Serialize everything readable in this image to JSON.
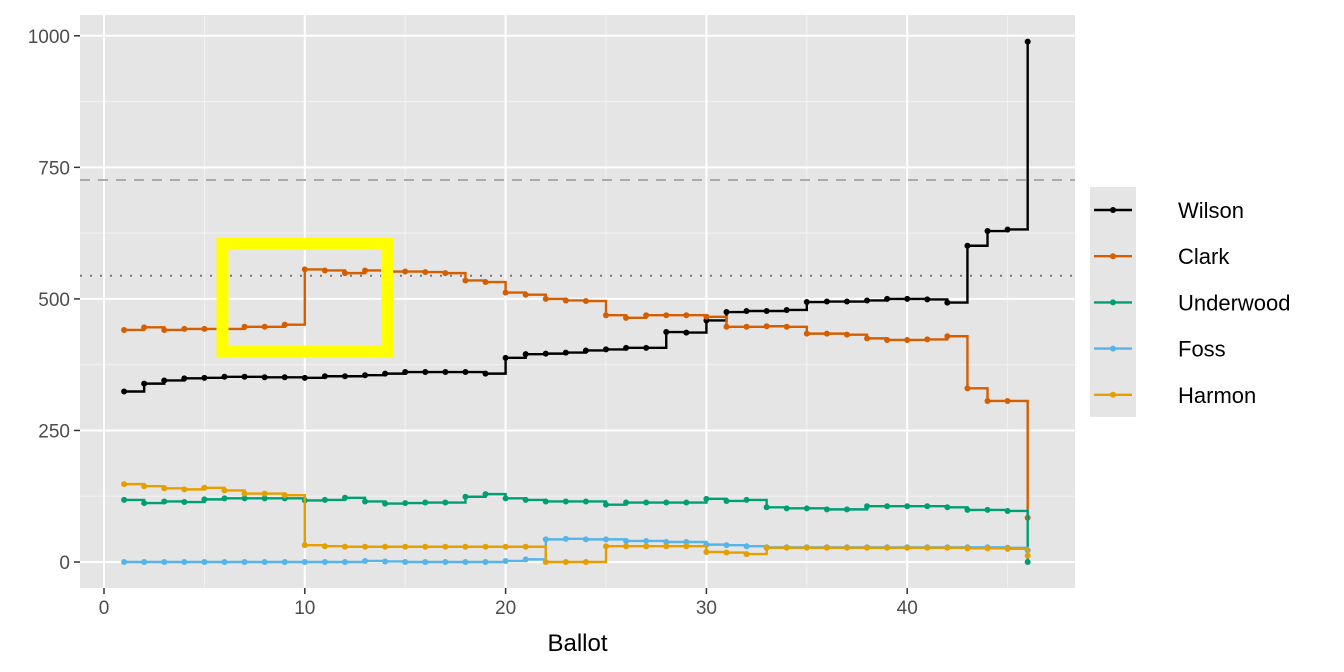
{
  "chart_data": {
    "type": "line",
    "step": "hv",
    "title": "",
    "xlabel": "Ballot",
    "ylabel": "",
    "xlim": [
      -1.2,
      48.5
    ],
    "ylim": [
      -50,
      1050
    ],
    "xticks": [
      0,
      10,
      20,
      30,
      40
    ],
    "yticks": [
      0,
      250,
      500,
      750,
      1000
    ],
    "grid": true,
    "legend_position": "right",
    "x": [
      1,
      2,
      3,
      4,
      5,
      6,
      7,
      8,
      9,
      10,
      11,
      12,
      13,
      14,
      15,
      16,
      17,
      18,
      19,
      20,
      21,
      22,
      23,
      24,
      25,
      26,
      27,
      28,
      29,
      30,
      31,
      32,
      33,
      34,
      35,
      36,
      37,
      38,
      39,
      40,
      41,
      42,
      43,
      44,
      45,
      46
    ],
    "series": [
      {
        "name": "Wilson",
        "color": "#000000",
        "values": [
          324,
          339,
          345,
          349,
          350,
          352,
          352,
          351,
          351,
          350,
          353,
          353,
          355,
          358,
          361,
          361,
          361,
          361,
          358,
          388,
          395,
          396,
          398,
          402,
          404,
          407,
          407,
          437,
          436,
          459,
          475,
          477,
          477,
          479,
          494,
          495,
          495,
          497,
          500,
          500,
          499,
          493,
          601,
          629,
          632,
          989
        ]
      },
      {
        "name": "Clark",
        "color": "#D55E00",
        "values": [
          441,
          446,
          441,
          443,
          443,
          443,
          447,
          447,
          451,
          556,
          554,
          549,
          554,
          552,
          552,
          551,
          549,
          535,
          532,
          512,
          508,
          500,
          497,
          496,
          469,
          464,
          469,
          469,
          469,
          466,
          447,
          447,
          448,
          447,
          434,
          434,
          432,
          425,
          422,
          422,
          423,
          429,
          330,
          306,
          306,
          84
        ]
      },
      {
        "name": "Underwood",
        "color": "#009E73",
        "values": [
          118,
          112,
          115,
          114,
          119,
          121,
          121,
          121,
          121,
          117,
          118,
          122,
          115,
          111,
          112,
          113,
          113,
          124,
          129,
          121,
          118,
          115,
          115,
          115,
          109,
          113,
          113,
          113,
          113,
          120,
          116,
          118,
          104,
          102,
          102,
          100,
          100,
          106,
          106,
          106,
          106,
          104,
          99,
          99,
          97,
          0
        ]
      },
      {
        "name": "Foss",
        "color": "#56B4E9",
        "values": [
          0,
          0,
          0,
          0,
          0,
          0,
          0,
          0,
          0,
          0,
          0,
          0,
          2,
          1,
          0,
          0,
          0,
          0,
          0,
          2,
          5,
          43,
          44,
          43,
          43,
          40,
          40,
          38,
          38,
          33,
          32,
          30,
          28,
          28,
          28,
          28,
          28,
          28,
          28,
          28,
          28,
          28,
          28,
          28,
          27,
          22
        ]
      },
      {
        "name": "Harmon",
        "color": "#E69F00",
        "values": [
          148,
          144,
          140,
          138,
          141,
          136,
          130,
          130,
          127,
          32,
          30,
          29,
          29,
          29,
          29,
          29,
          29,
          29,
          29,
          29,
          29,
          0,
          0,
          0,
          30,
          30,
          30,
          30,
          30,
          19,
          18,
          15,
          27,
          27,
          27,
          27,
          27,
          27,
          27,
          27,
          27,
          27,
          26,
          26,
          25,
          12
        ]
      }
    ],
    "reference_lines": [
      {
        "y": 726,
        "style": "dashed",
        "color": "#aaaaaa"
      },
      {
        "y": 544,
        "style": "dotted",
        "color": "#777777"
      }
    ],
    "highlight_box": {
      "x": [
        5.9,
        14.1
      ],
      "y": [
        400,
        605
      ],
      "color": "#FFFF00"
    }
  }
}
